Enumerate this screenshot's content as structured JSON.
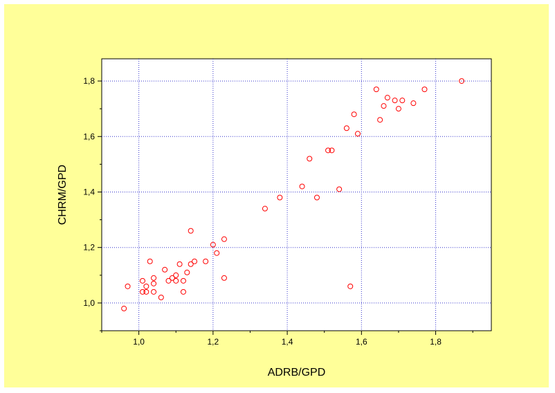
{
  "chart_data": {
    "type": "scatter",
    "title": "",
    "xlabel": "ADRB/GPD",
    "ylabel": "CHRM/GPD",
    "xlim": [
      0.9,
      1.95
    ],
    "ylim": [
      0.9,
      1.88
    ],
    "x_ticks": [
      1.0,
      1.2,
      1.4,
      1.6,
      1.8
    ],
    "y_ticks": [
      1.0,
      1.2,
      1.4,
      1.6,
      1.8
    ],
    "x_tick_labels": [
      "1,0",
      "1,2",
      "1,4",
      "1,6",
      "1,8"
    ],
    "y_tick_labels": [
      "1,0",
      "1,2",
      "1,4",
      "1,6",
      "1,8"
    ],
    "grid": true,
    "grid_color": "#3333cc",
    "marker_color": "#ff0000",
    "background_color": "#ffff99",
    "plot_background": "#ffffff",
    "points": [
      {
        "x": 0.96,
        "y": 0.98
      },
      {
        "x": 0.97,
        "y": 1.06
      },
      {
        "x": 1.01,
        "y": 1.08
      },
      {
        "x": 1.01,
        "y": 1.04
      },
      {
        "x": 1.02,
        "y": 1.04
      },
      {
        "x": 1.02,
        "y": 1.06
      },
      {
        "x": 1.03,
        "y": 1.15
      },
      {
        "x": 1.04,
        "y": 1.09
      },
      {
        "x": 1.04,
        "y": 1.07
      },
      {
        "x": 1.04,
        "y": 1.04
      },
      {
        "x": 1.06,
        "y": 1.02
      },
      {
        "x": 1.07,
        "y": 1.12
      },
      {
        "x": 1.08,
        "y": 1.08
      },
      {
        "x": 1.09,
        "y": 1.09
      },
      {
        "x": 1.1,
        "y": 1.08
      },
      {
        "x": 1.1,
        "y": 1.1
      },
      {
        "x": 1.11,
        "y": 1.14
      },
      {
        "x": 1.12,
        "y": 1.08
      },
      {
        "x": 1.12,
        "y": 1.04
      },
      {
        "x": 1.13,
        "y": 1.11
      },
      {
        "x": 1.14,
        "y": 1.14
      },
      {
        "x": 1.14,
        "y": 1.26
      },
      {
        "x": 1.15,
        "y": 1.15
      },
      {
        "x": 1.18,
        "y": 1.15
      },
      {
        "x": 1.2,
        "y": 1.21
      },
      {
        "x": 1.21,
        "y": 1.18
      },
      {
        "x": 1.23,
        "y": 1.23
      },
      {
        "x": 1.23,
        "y": 1.09
      },
      {
        "x": 1.34,
        "y": 1.34
      },
      {
        "x": 1.38,
        "y": 1.38
      },
      {
        "x": 1.44,
        "y": 1.42
      },
      {
        "x": 1.46,
        "y": 1.52
      },
      {
        "x": 1.48,
        "y": 1.38
      },
      {
        "x": 1.51,
        "y": 1.55
      },
      {
        "x": 1.52,
        "y": 1.55
      },
      {
        "x": 1.54,
        "y": 1.41
      },
      {
        "x": 1.56,
        "y": 1.63
      },
      {
        "x": 1.57,
        "y": 1.06
      },
      {
        "x": 1.58,
        "y": 1.68
      },
      {
        "x": 1.59,
        "y": 1.61
      },
      {
        "x": 1.64,
        "y": 1.77
      },
      {
        "x": 1.65,
        "y": 1.66
      },
      {
        "x": 1.66,
        "y": 1.71
      },
      {
        "x": 1.67,
        "y": 1.74
      },
      {
        "x": 1.69,
        "y": 1.73
      },
      {
        "x": 1.7,
        "y": 1.7
      },
      {
        "x": 1.71,
        "y": 1.73
      },
      {
        "x": 1.74,
        "y": 1.72
      },
      {
        "x": 1.77,
        "y": 1.77
      },
      {
        "x": 1.87,
        "y": 1.8
      }
    ]
  }
}
